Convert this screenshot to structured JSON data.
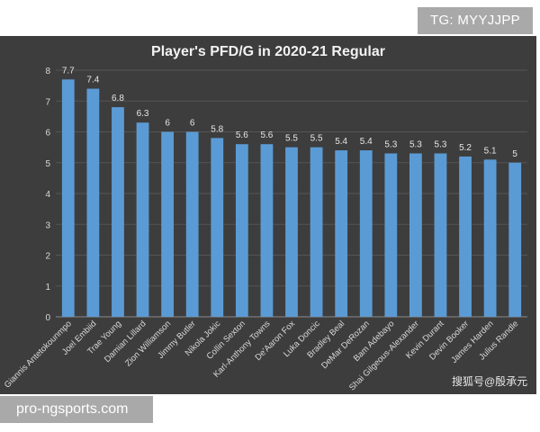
{
  "watermarks": {
    "top_right": "TG: MYYJJPP",
    "bottom_left": "pro-ngsports.com",
    "bottom_right": "搜狐号@殷承元"
  },
  "chart_data": {
    "type": "bar",
    "title": "Player's PFD/G in 2020-21 Regular",
    "xlabel": "",
    "ylabel": "",
    "ylim": [
      0,
      8
    ],
    "yticks": [
      0,
      1,
      2,
      3,
      4,
      5,
      6,
      7,
      8
    ],
    "grid": true,
    "legend": "none",
    "bar_color": "#5b9bd5",
    "categories": [
      "Giannis Antetokounmpo",
      "Joel Embiid",
      "Trae Young",
      "Damian Lillard",
      "Zion Williamson",
      "Jimmy Butler",
      "Nikola Jokic",
      "Collin Sexton",
      "Karl-Anthony Towns",
      "De'Aaron Fox",
      "Luka Doncic",
      "Bradley Beal",
      "DeMar DeRozan",
      "Bam Adebayo",
      "Shai Gilgeous-Alexander",
      "Kevin Durant",
      "Devin Booker",
      "James Harden",
      "Julius Randle"
    ],
    "values": [
      7.7,
      7.4,
      6.8,
      6.3,
      6,
      6,
      5.8,
      5.6,
      5.6,
      5.5,
      5.5,
      5.4,
      5.4,
      5.3,
      5.3,
      5.3,
      5.2,
      5.1,
      5
    ],
    "value_labels": [
      "7.7",
      "7.4",
      "6.8",
      "6.3",
      "6",
      "6",
      "5.8",
      "5.6",
      "5.6",
      "5.5",
      "5.5",
      "5.4",
      "5.4",
      "5.3",
      "5.3",
      "5.3",
      "5.2",
      "5.1",
      "5"
    ]
  }
}
